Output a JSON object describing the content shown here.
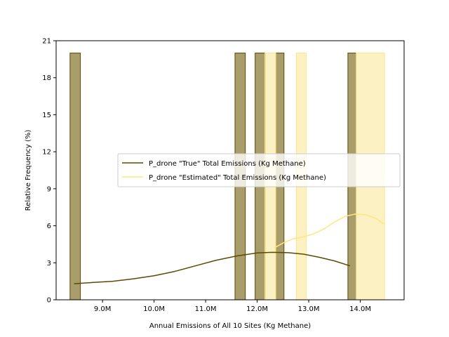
{
  "chart_data": {
    "type": "histogram",
    "xlabel": "Annual Emissions of All 10 Sites (Kg Methane)",
    "ylabel": "Relative Frequency (%)",
    "xlim": [
      8.1,
      14.85
    ],
    "ylim": [
      0,
      21
    ],
    "x_ticks": [
      {
        "value": 9.0,
        "label": "9.0M"
      },
      {
        "value": 10.0,
        "label": "10.0M"
      },
      {
        "value": 11.0,
        "label": "11.0M"
      },
      {
        "value": 12.0,
        "label": "12.0M"
      },
      {
        "value": 13.0,
        "label": "13.0M"
      },
      {
        "value": 14.0,
        "label": "14.0M"
      }
    ],
    "y_ticks": [
      {
        "value": 0,
        "label": "0"
      },
      {
        "value": 3,
        "label": "3"
      },
      {
        "value": 6,
        "label": "6"
      },
      {
        "value": 9,
        "label": "9"
      },
      {
        "value": 12,
        "label": "12"
      },
      {
        "value": 15,
        "label": "15"
      },
      {
        "value": 18,
        "label": "18"
      },
      {
        "value": 21,
        "label": "21"
      }
    ],
    "legend_position": "center-right",
    "series": [
      {
        "name": "P_drone \"True\" Total Emissions (Kg Methane)",
        "color": "#5c4a00",
        "bar_fill": "#a89d6b",
        "bars": [
          {
            "x0": 8.37,
            "x1": 8.57,
            "value": 20
          },
          {
            "x0": 11.57,
            "x1": 11.77,
            "value": 20
          },
          {
            "x0": 11.96,
            "x1": 12.16,
            "value": 20
          },
          {
            "x0": 12.36,
            "x1": 12.52,
            "value": 20
          },
          {
            "x0": 13.76,
            "x1": 13.92,
            "value": 20
          }
        ],
        "kde": {
          "x": [
            8.45,
            8.8,
            9.2,
            9.6,
            10.0,
            10.4,
            10.8,
            11.2,
            11.6,
            12.0,
            12.3,
            12.6,
            12.9,
            13.2,
            13.5,
            13.8
          ],
          "y": [
            1.3,
            1.4,
            1.5,
            1.7,
            1.95,
            2.3,
            2.75,
            3.2,
            3.55,
            3.8,
            3.85,
            3.82,
            3.7,
            3.45,
            3.15,
            2.75
          ]
        }
      },
      {
        "name": "P_drone \"Estimated\" Total Emissions (Kg Methane)",
        "color": "#ffe680",
        "bar_fill": "#fbefb9",
        "bars": [
          {
            "x0": 12.15,
            "x1": 12.36,
            "value": 20
          },
          {
            "x0": 12.76,
            "x1": 12.95,
            "value": 20
          },
          {
            "x0": 13.92,
            "x1": 14.47,
            "value": 20
          }
        ],
        "kde": {
          "x": [
            12.33,
            12.5,
            12.7,
            12.9,
            13.1,
            13.3,
            13.5,
            13.7,
            13.9,
            14.1,
            14.3,
            14.47
          ],
          "y": [
            4.2,
            4.6,
            4.95,
            5.1,
            5.35,
            5.75,
            6.3,
            6.75,
            6.95,
            6.9,
            6.6,
            6.1
          ]
        }
      }
    ]
  }
}
